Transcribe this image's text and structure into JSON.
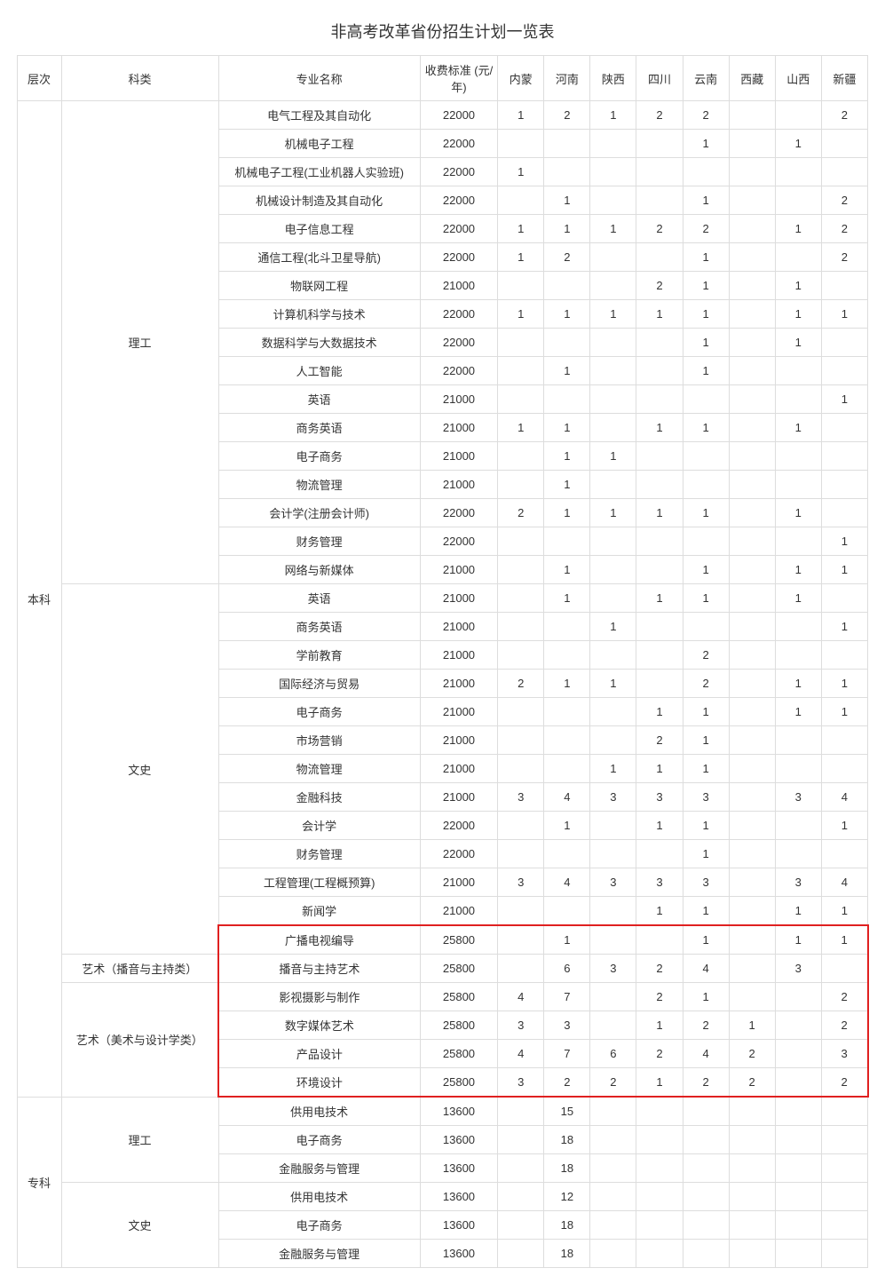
{
  "title": "非高考改革省份招生计划一览表",
  "headers": {
    "level": "层次",
    "category": "科类",
    "major": "专业名称",
    "fee": "收费标准 (元/年)",
    "provinces": [
      "内蒙",
      "河南",
      "陕西",
      "四川",
      "云南",
      "西藏",
      "山西",
      "新疆"
    ]
  },
  "highlight_color": "#e02020",
  "border_color": "#dddddd",
  "text_color": "#333333",
  "background_color": "#ffffff",
  "title_fontsize": 18,
  "cell_fontsize": 13,
  "levels": [
    {
      "name": "本科",
      "categories": [
        {
          "name": "理工",
          "rows": [
            {
              "major": "电气工程及其自动化",
              "fee": "22000",
              "v": [
                "1",
                "2",
                "1",
                "2",
                "2",
                "",
                "",
                "2"
              ]
            },
            {
              "major": "机械电子工程",
              "fee": "22000",
              "v": [
                "",
                "",
                "",
                "",
                "1",
                "",
                "1",
                ""
              ]
            },
            {
              "major": "机械电子工程(工业机器人实验班)",
              "fee": "22000",
              "v": [
                "1",
                "",
                "",
                "",
                "",
                "",
                "",
                ""
              ]
            },
            {
              "major": "机械设计制造及其自动化",
              "fee": "22000",
              "v": [
                "",
                "1",
                "",
                "",
                "1",
                "",
                "",
                "2"
              ]
            },
            {
              "major": "电子信息工程",
              "fee": "22000",
              "v": [
                "1",
                "1",
                "1",
                "2",
                "2",
                "",
                "1",
                "2"
              ]
            },
            {
              "major": "通信工程(北斗卫星导航)",
              "fee": "22000",
              "v": [
                "1",
                "2",
                "",
                "",
                "1",
                "",
                "",
                "2"
              ]
            },
            {
              "major": "物联网工程",
              "fee": "21000",
              "v": [
                "",
                "",
                "",
                "2",
                "1",
                "",
                "1",
                ""
              ]
            },
            {
              "major": "计算机科学与技术",
              "fee": "22000",
              "v": [
                "1",
                "1",
                "1",
                "1",
                "1",
                "",
                "1",
                "1"
              ]
            },
            {
              "major": "数据科学与大数据技术",
              "fee": "22000",
              "v": [
                "",
                "",
                "",
                "",
                "1",
                "",
                "1",
                ""
              ]
            },
            {
              "major": "人工智能",
              "fee": "22000",
              "v": [
                "",
                "1",
                "",
                "",
                "1",
                "",
                "",
                ""
              ]
            },
            {
              "major": "英语",
              "fee": "21000",
              "v": [
                "",
                "",
                "",
                "",
                "",
                "",
                "",
                "1"
              ]
            },
            {
              "major": "商务英语",
              "fee": "21000",
              "v": [
                "1",
                "1",
                "",
                "1",
                "1",
                "",
                "1",
                ""
              ]
            },
            {
              "major": "电子商务",
              "fee": "21000",
              "v": [
                "",
                "1",
                "1",
                "",
                "",
                "",
                "",
                ""
              ]
            },
            {
              "major": "物流管理",
              "fee": "21000",
              "v": [
                "",
                "1",
                "",
                "",
                "",
                "",
                "",
                ""
              ]
            },
            {
              "major": "会计学(注册会计师)",
              "fee": "22000",
              "v": [
                "2",
                "1",
                "1",
                "1",
                "1",
                "",
                "1",
                ""
              ]
            },
            {
              "major": "财务管理",
              "fee": "22000",
              "v": [
                "",
                "",
                "",
                "",
                "",
                "",
                "",
                "1"
              ]
            },
            {
              "major": "网络与新媒体",
              "fee": "21000",
              "v": [
                "",
                "1",
                "",
                "",
                "1",
                "",
                "1",
                "1"
              ]
            }
          ]
        },
        {
          "name": "文史",
          "rows": [
            {
              "major": "英语",
              "fee": "21000",
              "v": [
                "",
                "1",
                "",
                "1",
                "1",
                "",
                "1",
                ""
              ]
            },
            {
              "major": "商务英语",
              "fee": "21000",
              "v": [
                "",
                "",
                "1",
                "",
                "",
                "",
                "",
                "1"
              ]
            },
            {
              "major": "学前教育",
              "fee": "21000",
              "v": [
                "",
                "",
                "",
                "",
                "2",
                "",
                "",
                ""
              ]
            },
            {
              "major": "国际经济与贸易",
              "fee": "21000",
              "v": [
                "2",
                "1",
                "1",
                "",
                "2",
                "",
                "1",
                "1"
              ]
            },
            {
              "major": "电子商务",
              "fee": "21000",
              "v": [
                "",
                "",
                "",
                "1",
                "1",
                "",
                "1",
                "1"
              ]
            },
            {
              "major": "市场营销",
              "fee": "21000",
              "v": [
                "",
                "",
                "",
                "2",
                "1",
                "",
                "",
                ""
              ]
            },
            {
              "major": "物流管理",
              "fee": "21000",
              "v": [
                "",
                "",
                "1",
                "1",
                "1",
                "",
                "",
                ""
              ]
            },
            {
              "major": "金融科技",
              "fee": "21000",
              "v": [
                "3",
                "4",
                "3",
                "3",
                "3",
                "",
                "3",
                "4"
              ]
            },
            {
              "major": "会计学",
              "fee": "22000",
              "v": [
                "",
                "1",
                "",
                "1",
                "1",
                "",
                "",
                "1"
              ]
            },
            {
              "major": "财务管理",
              "fee": "22000",
              "v": [
                "",
                "",
                "",
                "",
                "1",
                "",
                "",
                ""
              ]
            },
            {
              "major": "工程管理(工程概预算)",
              "fee": "21000",
              "v": [
                "3",
                "4",
                "3",
                "3",
                "3",
                "",
                "3",
                "4"
              ]
            },
            {
              "major": "新闻学",
              "fee": "21000",
              "v": [
                "",
                "",
                "",
                "1",
                "1",
                "",
                "1",
                "1"
              ]
            },
            {
              "major": "广播电视编导",
              "fee": "25800",
              "v": [
                "",
                "1",
                "",
                "",
                "1",
                "",
                "1",
                "1"
              ],
              "hl": "top"
            }
          ]
        },
        {
          "name": "艺术（播音与主持类）",
          "rows": [
            {
              "major": "播音与主持艺术",
              "fee": "25800",
              "v": [
                "",
                "6",
                "3",
                "2",
                "4",
                "",
                "3",
                ""
              ],
              "hl": "mid"
            }
          ]
        },
        {
          "name": "艺术（美术与设计学类）",
          "rows": [
            {
              "major": "影视摄影与制作",
              "fee": "25800",
              "v": [
                "4",
                "7",
                "",
                "2",
                "1",
                "",
                "",
                "2"
              ],
              "hl": "mid"
            },
            {
              "major": "数字媒体艺术",
              "fee": "25800",
              "v": [
                "3",
                "3",
                "",
                "1",
                "2",
                "1",
                "",
                "2"
              ],
              "hl": "mid"
            },
            {
              "major": "产品设计",
              "fee": "25800",
              "v": [
                "4",
                "7",
                "6",
                "2",
                "4",
                "2",
                "",
                "3"
              ],
              "hl": "mid"
            },
            {
              "major": "环境设计",
              "fee": "25800",
              "v": [
                "3",
                "2",
                "2",
                "1",
                "2",
                "2",
                "",
                "2"
              ],
              "hl": "bottom"
            }
          ]
        }
      ]
    },
    {
      "name": "专科",
      "categories": [
        {
          "name": "理工",
          "rows": [
            {
              "major": "供用电技术",
              "fee": "13600",
              "v": [
                "",
                "15",
                "",
                "",
                "",
                "",
                "",
                ""
              ]
            },
            {
              "major": "电子商务",
              "fee": "13600",
              "v": [
                "",
                "18",
                "",
                "",
                "",
                "",
                "",
                ""
              ]
            },
            {
              "major": "金融服务与管理",
              "fee": "13600",
              "v": [
                "",
                "18",
                "",
                "",
                "",
                "",
                "",
                ""
              ]
            }
          ]
        },
        {
          "name": "文史",
          "rows": [
            {
              "major": "供用电技术",
              "fee": "13600",
              "v": [
                "",
                "12",
                "",
                "",
                "",
                "",
                "",
                ""
              ]
            },
            {
              "major": "电子商务",
              "fee": "13600",
              "v": [
                "",
                "18",
                "",
                "",
                "",
                "",
                "",
                ""
              ]
            },
            {
              "major": "金融服务与管理",
              "fee": "13600",
              "v": [
                "",
                "18",
                "",
                "",
                "",
                "",
                "",
                ""
              ]
            }
          ]
        }
      ]
    }
  ]
}
